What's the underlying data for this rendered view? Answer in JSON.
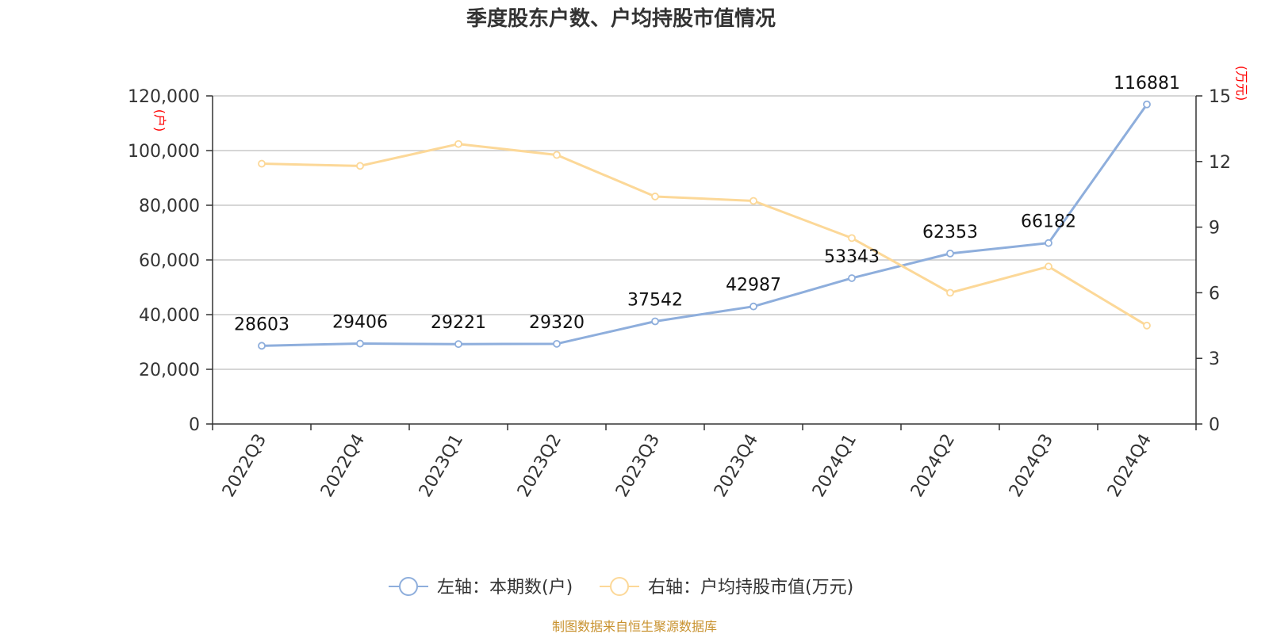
{
  "colors": {
    "series_left": "#8eaedc",
    "series_right": "#fcd898",
    "grid": "#c8c8c8",
    "axis": "#333333",
    "unit": "#ff0000",
    "source": "#c8922f"
  },
  "chart_data": {
    "type": "line",
    "title": "季度股东户数、户均持股市值情况",
    "categories": [
      "2022Q3",
      "2022Q4",
      "2023Q1",
      "2023Q2",
      "2023Q3",
      "2023Q4",
      "2024Q1",
      "2024Q2",
      "2024Q3",
      "2024Q4"
    ],
    "left_axis": {
      "unit": "(户)",
      "ylim": [
        0,
        120000
      ],
      "ticks": [
        0,
        20000,
        40000,
        60000,
        80000,
        100000,
        120000
      ],
      "tick_labels": [
        "0",
        "20,000",
        "40,000",
        "60,000",
        "80,000",
        "100,000",
        "120,000"
      ]
    },
    "right_axis": {
      "unit": "(万元)",
      "ylim": [
        0,
        15
      ],
      "ticks": [
        0,
        3,
        6,
        9,
        12,
        15
      ],
      "tick_labels": [
        "0",
        "3",
        "6",
        "9",
        "12",
        "15"
      ]
    },
    "series": [
      {
        "name": "左轴：本期数(户)",
        "axis": "left",
        "color": "#8eaedc",
        "values": [
          28603,
          29406,
          29221,
          29320,
          37542,
          42987,
          53343,
          62353,
          66182,
          116881
        ],
        "labels": [
          "28603",
          "29406",
          "29221",
          "29320",
          "37542",
          "42987",
          "53343",
          "62353",
          "66182",
          "116881"
        ]
      },
      {
        "name": "右轴：户均持股市值(万元)",
        "axis": "right",
        "color": "#fcd898",
        "values": [
          11.9,
          11.8,
          12.8,
          12.3,
          10.4,
          10.2,
          8.5,
          6.0,
          7.2,
          4.5
        ]
      }
    ],
    "grid": true,
    "legend_position": "bottom"
  },
  "source_text": "制图数据来自恒生聚源数据库"
}
